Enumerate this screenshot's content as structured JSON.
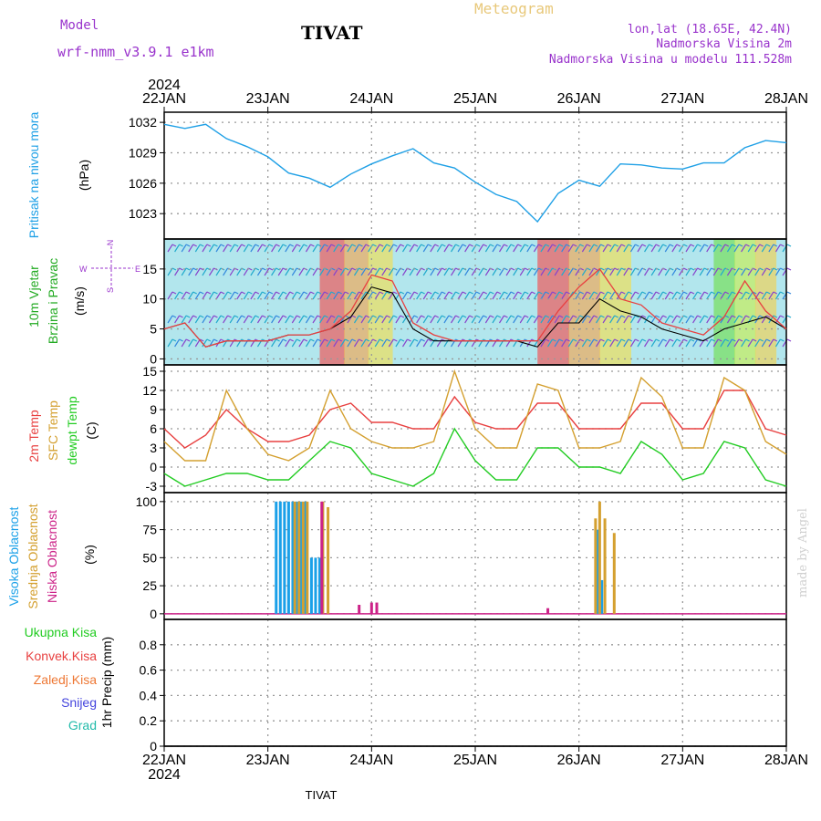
{
  "header": {
    "model_label": "Model",
    "model_name": "wrf-nmm_v3.9.1 e1km",
    "station": "TIVAT",
    "chart_title": "Meteogram",
    "coords": "lon,lat (18.65E, 42.4N)",
    "elevation": "Nadmorska Visina 2m",
    "model_elevation": "Nadmorska Visina u modelu 111.528m",
    "year_top": "2024",
    "year_bottom": "2024",
    "footer_station": "TIVAT",
    "credit": "made by Angel"
  },
  "colors": {
    "pressure": "#1fa0e6",
    "temp2m": "#e84040",
    "sfc": "#d4a030",
    "dewpt": "#22cc22",
    "high_cloud": "#1aa0e8",
    "mid_cloud": "#d4a030",
    "low_cloud": "#cc2288",
    "purple": "#9933cc",
    "green": "#22aa22",
    "total_precip": "#22cc22",
    "conv_precip": "#e84040",
    "frozen_precip": "#ee7733",
    "snow": "#4444dd",
    "hail": "#22bbaa"
  },
  "chart_data": [
    {
      "id": "pressure",
      "type": "line",
      "ylabel": [
        "Pritisak na nivou mora",
        "(hPa)"
      ],
      "ylim": [
        1020.5,
        1033
      ],
      "yticks": [
        1023,
        1026,
        1029,
        1032
      ],
      "x": [
        0,
        0.2,
        0.4,
        0.6,
        0.8,
        1.0,
        1.2,
        1.4,
        1.6,
        1.8,
        2.0,
        2.2,
        2.4,
        2.6,
        2.8,
        3.0,
        3.2,
        3.4,
        3.6,
        3.8,
        4.0,
        4.2,
        4.4,
        4.6,
        4.8,
        5.0,
        5.2,
        5.4,
        5.6,
        5.8,
        6.0
      ],
      "series": [
        {
          "values": [
            1031.8,
            1031.4,
            1031.8,
            1030.4,
            1029.6,
            1028.6,
            1027.0,
            1026.5,
            1025.6,
            1026.9,
            1027.9,
            1028.7,
            1029.4,
            1028.0,
            1027.5,
            1026.1,
            1024.9,
            1024.2,
            1022.2,
            1025.0,
            1026.3,
            1025.7,
            1027.9,
            1027.8,
            1027.5,
            1027.4,
            1028.0,
            1028.0,
            1029.5,
            1030.2,
            1030.0
          ]
        }
      ]
    },
    {
      "id": "wind",
      "type": "line",
      "ylabel": [
        "10m Vjetar",
        "Brzina i Pravac",
        "(m/s)"
      ],
      "compass": [
        "N",
        "W",
        "E",
        "S"
      ],
      "ylim": [
        -1,
        20
      ],
      "yticks": [
        0,
        5,
        10,
        15
      ],
      "x": [
        0,
        0.2,
        0.4,
        0.6,
        0.8,
        1.0,
        1.2,
        1.4,
        1.6,
        1.8,
        2.0,
        2.2,
        2.4,
        2.6,
        2.8,
        3.0,
        3.2,
        3.4,
        3.6,
        3.8,
        4.0,
        4.2,
        4.4,
        4.6,
        4.8,
        5.0,
        5.2,
        5.4,
        5.6,
        5.8,
        6.0
      ],
      "series": [
        {
          "values": [
            5,
            6,
            2,
            3,
            3,
            3,
            4,
            4,
            5,
            7,
            12,
            11,
            5,
            3,
            3,
            3,
            3,
            3,
            2,
            6,
            6,
            10,
            8,
            7,
            5,
            4,
            3,
            5,
            6,
            7,
            5
          ]
        },
        {
          "values": [
            5,
            6,
            2,
            3,
            3,
            3,
            4,
            4,
            5,
            8,
            14,
            13,
            6,
            4,
            3,
            3,
            3,
            3,
            3,
            8,
            12,
            15,
            10,
            9,
            6,
            5,
            4,
            7,
            13,
            8,
            5
          ]
        }
      ],
      "shading": [
        {
          "from": 1.5,
          "to": 2.2,
          "palette": "warm"
        },
        {
          "from": 3.6,
          "to": 4.5,
          "palette": "warm"
        },
        {
          "from": 5.3,
          "to": 5.9,
          "palette": "green"
        }
      ]
    },
    {
      "id": "temperature",
      "type": "line",
      "ylabel": [
        "2m Temp",
        "SFC Temp",
        "dewpt Temp",
        "(C)"
      ],
      "ylim": [
        -4,
        16
      ],
      "yticks": [
        -3,
        0,
        3,
        6,
        9,
        12,
        15
      ],
      "x": [
        0,
        0.2,
        0.4,
        0.6,
        0.8,
        1.0,
        1.2,
        1.4,
        1.6,
        1.8,
        2.0,
        2.2,
        2.4,
        2.6,
        2.8,
        3.0,
        3.2,
        3.4,
        3.6,
        3.8,
        4.0,
        4.2,
        4.4,
        4.6,
        4.8,
        5.0,
        5.2,
        5.4,
        5.6,
        5.8,
        6.0
      ],
      "series": [
        {
          "name": "2m Temp",
          "values": [
            6,
            3,
            5,
            9,
            6,
            4,
            4,
            5,
            9,
            10,
            7,
            7,
            6,
            6,
            11,
            7,
            6,
            6,
            10,
            10,
            6,
            6,
            6,
            10,
            10,
            6,
            6,
            12,
            12,
            6,
            5
          ]
        },
        {
          "name": "SFC Temp",
          "values": [
            4,
            1,
            1,
            12,
            6,
            2,
            1,
            3,
            12,
            6,
            4,
            3,
            3,
            4,
            15,
            6,
            3,
            3,
            13,
            12,
            3,
            3,
            4,
            14,
            11,
            3,
            3,
            14,
            12,
            4,
            2
          ]
        },
        {
          "name": "dewpt Temp",
          "values": [
            -1,
            -3,
            -2,
            -1,
            -1,
            -2,
            -2,
            1,
            4,
            3,
            -1,
            -2,
            -3,
            -1,
            6,
            1,
            -2,
            -2,
            3,
            3,
            0,
            0,
            -1,
            4,
            2,
            -2,
            -1,
            4,
            3,
            -2,
            -3
          ]
        }
      ]
    },
    {
      "id": "cloud",
      "type": "bar",
      "ylabel": [
        "Visoka Oblacnost",
        "Srednja Oblacnost",
        "Niska Oblacnost",
        "(%)"
      ],
      "ylim": [
        -5,
        108
      ],
      "yticks": [
        0,
        25,
        50,
        75,
        100
      ],
      "series": [
        {
          "name": "Visoka Oblacnost",
          "x": [
            1.08,
            1.12,
            1.16,
            1.2,
            1.24,
            1.28,
            1.32,
            1.36,
            1.42,
            1.46,
            1.5,
            4.18,
            4.22
          ],
          "values": [
            100,
            100,
            100,
            100,
            100,
            100,
            100,
            100,
            50,
            50,
            50,
            75,
            30
          ]
        },
        {
          "name": "Srednja Oblacnost",
          "x": [
            1.26,
            1.3,
            1.34,
            1.38,
            1.53,
            1.58,
            4.16,
            4.2,
            4.25,
            4.34
          ],
          "values": [
            100,
            100,
            100,
            100,
            100,
            95,
            85,
            100,
            85,
            72
          ]
        },
        {
          "name": "Niska Oblacnost",
          "x": [
            1.52,
            1.88,
            2.0,
            2.05,
            3.7
          ],
          "values": [
            100,
            8,
            10,
            10,
            5
          ]
        }
      ]
    },
    {
      "id": "precip",
      "type": "bar",
      "ylabel": [
        "Ukupna Kisa",
        "Konvek.Kisa",
        "Zaledj.Kisa",
        "Snijeg",
        "Grad",
        "1hr Precip (mm)"
      ],
      "ylim": [
        0,
        1.0
      ],
      "yticks": [
        0,
        0.2,
        0.4,
        0.6,
        0.8
      ],
      "series": []
    }
  ],
  "x_axis": {
    "labels": [
      "22JAN",
      "23JAN",
      "24JAN",
      "25JAN",
      "26JAN",
      "27JAN",
      "28JAN"
    ],
    "grid": true
  }
}
